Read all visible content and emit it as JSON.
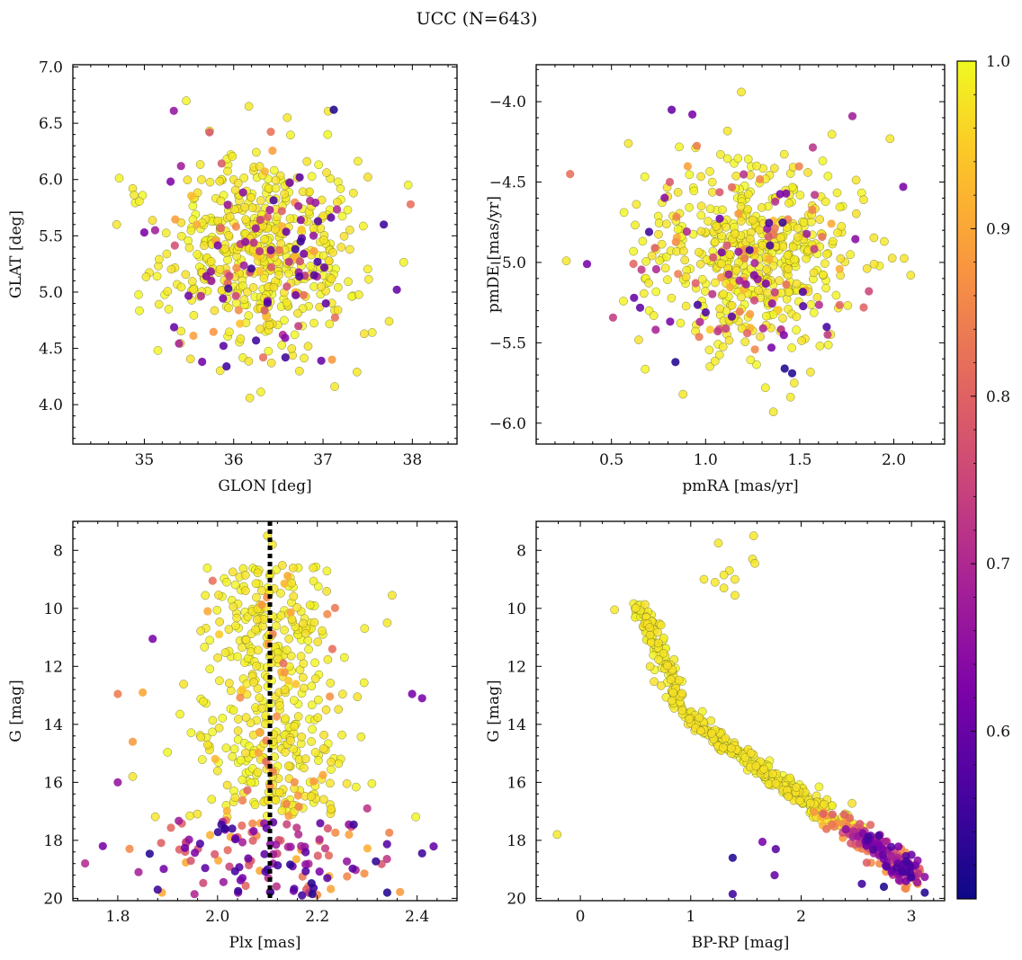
{
  "title": "UCC (N=643)",
  "colors": {
    "ref_line": "#000000",
    "point_edge": "#6b6b2a",
    "frame": "#000000"
  },
  "colorbar": {
    "colormap": "plasma",
    "range": [
      0.5,
      1.0
    ],
    "ticks": [
      0.6,
      0.7,
      0.8,
      0.9,
      1.0
    ],
    "tick_labels": [
      "0.6",
      "0.7",
      "0.8",
      "0.9",
      "1.0"
    ]
  },
  "chart_data": [
    {
      "id": "glon-glat",
      "type": "scatter",
      "xlabel": "GLON [deg]",
      "ylabel": "GLAT [deg]",
      "xlim": [
        34.2,
        38.5
      ],
      "ylim": [
        3.65,
        7.02
      ],
      "y_inverted": false,
      "xticks": [
        35,
        36,
        37,
        38
      ],
      "xtick_labels": [
        "35",
        "36",
        "37",
        "38"
      ],
      "yticks": [
        4.0,
        4.5,
        5.0,
        5.5,
        6.0,
        6.5,
        7.0
      ],
      "ytick_labels": [
        "4.0",
        "4.5",
        "5.0",
        "5.5",
        "6.0",
        "6.5",
        "7.0"
      ],
      "distribution": {
        "n": 643,
        "center": [
          36.3,
          5.35
        ],
        "spread": [
          0.55,
          0.45
        ]
      },
      "highlighted_points": [
        {
          "x": 36.17,
          "y": 6.65,
          "p": 0.98
        },
        {
          "x": 35.33,
          "y": 6.61,
          "p": 0.66
        },
        {
          "x": 37.12,
          "y": 6.62,
          "p": 0.52
        },
        {
          "x": 35.73,
          "y": 6.42,
          "p": 0.78
        },
        {
          "x": 37.98,
          "y": 5.78,
          "p": 0.82
        },
        {
          "x": 37.68,
          "y": 5.6,
          "p": 0.55
        },
        {
          "x": 34.69,
          "y": 5.6,
          "p": 0.98
        },
        {
          "x": 34.87,
          "y": 5.92,
          "p": 0.98
        },
        {
          "x": 35.12,
          "y": 5.55,
          "p": 0.68
        },
        {
          "x": 35.0,
          "y": 5.53,
          "p": 0.62
        },
        {
          "x": 36.33,
          "y": 4.42,
          "p": 0.82
        },
        {
          "x": 36.58,
          "y": 4.42,
          "p": 0.55
        },
        {
          "x": 35.92,
          "y": 4.34,
          "p": 0.55
        },
        {
          "x": 36.98,
          "y": 4.39,
          "p": 0.6
        },
        {
          "x": 37.38,
          "y": 4.29,
          "p": 0.98
        },
        {
          "x": 36.18,
          "y": 4.06,
          "p": 0.98
        },
        {
          "x": 37.13,
          "y": 4.16,
          "p": 0.98
        },
        {
          "x": 37.74,
          "y": 4.74,
          "p": 0.98
        },
        {
          "x": 36.25,
          "y": 4.57,
          "p": 0.55
        },
        {
          "x": 36.55,
          "y": 4.62,
          "p": 0.7
        },
        {
          "x": 36.9,
          "y": 5.15,
          "p": 0.58
        },
        {
          "x": 36.75,
          "y": 5.45,
          "p": 0.55
        },
        {
          "x": 37.1,
          "y": 4.4,
          "p": 0.88
        },
        {
          "x": 36.6,
          "y": 6.55,
          "p": 0.98
        },
        {
          "x": 35.41,
          "y": 6.12,
          "p": 0.68
        },
        {
          "x": 37.34,
          "y": 5.88,
          "p": 0.98
        }
      ]
    },
    {
      "id": "pmra-pmde",
      "type": "scatter",
      "xlabel": "pmRA [mas/yr]",
      "ylabel": "pmDE [mas/yr]",
      "xlim": [
        0.1,
        2.27
      ],
      "ylim": [
        -6.13,
        -3.77
      ],
      "y_inverted": false,
      "xticks": [
        0.5,
        1.0,
        1.5,
        2.0
      ],
      "xtick_labels": [
        "0.5",
        "1.0",
        "1.5",
        "2.0"
      ],
      "yticks": [
        -6.0,
        -5.5,
        -5.0,
        -4.5,
        -4.0
      ],
      "ytick_labels": [
        "−6.0",
        "−5.5",
        "−5.0",
        "−4.5",
        "−4.0"
      ],
      "distribution": {
        "n": 643,
        "center": [
          1.25,
          -4.95
        ],
        "spread": [
          0.28,
          0.3
        ]
      },
      "highlighted_points": [
        {
          "x": 1.19,
          "y": -3.94,
          "p": 0.98
        },
        {
          "x": 0.82,
          "y": -4.05,
          "p": 0.6
        },
        {
          "x": 0.93,
          "y": -4.08,
          "p": 0.62
        },
        {
          "x": 1.78,
          "y": -4.09,
          "p": 0.68
        },
        {
          "x": 0.28,
          "y": -4.45,
          "p": 0.82
        },
        {
          "x": 0.37,
          "y": -5.01,
          "p": 0.62
        },
        {
          "x": 0.26,
          "y": -4.99,
          "p": 0.98
        },
        {
          "x": 0.84,
          "y": -5.62,
          "p": 0.52
        },
        {
          "x": 0.88,
          "y": -5.82,
          "p": 0.98
        },
        {
          "x": 1.36,
          "y": -5.93,
          "p": 0.98
        },
        {
          "x": 1.42,
          "y": -5.66,
          "p": 0.52
        },
        {
          "x": 1.46,
          "y": -5.69,
          "p": 0.52
        },
        {
          "x": 2.05,
          "y": -4.53,
          "p": 0.62
        },
        {
          "x": 2.09,
          "y": -5.08,
          "p": 0.98
        },
        {
          "x": 1.84,
          "y": -5.28,
          "p": 0.8
        },
        {
          "x": 0.62,
          "y": -5.22,
          "p": 0.6
        },
        {
          "x": 0.7,
          "y": -4.81,
          "p": 0.55
        },
        {
          "x": 0.59,
          "y": -4.26,
          "p": 0.98
        },
        {
          "x": 1.98,
          "y": -4.23,
          "p": 0.98
        },
        {
          "x": 1.84,
          "y": -4.61,
          "p": 0.98
        },
        {
          "x": 1.35,
          "y": -5.53,
          "p": 0.62
        },
        {
          "x": 0.97,
          "y": -5.37,
          "p": 0.7
        },
        {
          "x": 0.81,
          "y": -4.5,
          "p": 0.78
        },
        {
          "x": 1.58,
          "y": -4.58,
          "p": 0.72
        }
      ]
    },
    {
      "id": "plx-g",
      "type": "scatter",
      "xlabel": "Plx [mas]",
      "ylabel": "G [mag]",
      "xlim": [
        1.71,
        2.48
      ],
      "ylim": [
        20.08,
        7.0
      ],
      "y_inverted": true,
      "xticks": [
        1.8,
        2.0,
        2.2,
        2.4
      ],
      "xtick_labels": [
        "1.8",
        "2.0",
        "2.2",
        "2.4"
      ],
      "yticks": [
        8,
        10,
        12,
        14,
        16,
        18,
        20
      ],
      "ytick_labels": [
        "8",
        "10",
        "12",
        "14",
        "16",
        "18",
        "20"
      ],
      "reference_line": {
        "x": 2.105,
        "style": "dotted"
      },
      "distribution": {
        "n": 643,
        "center_x": 2.11,
        "spread_x": 0.09,
        "g_range": [
          7.5,
          20.0
        ]
      },
      "highlighted_points": [
        {
          "x": 2.1,
          "y": 7.5,
          "p": 0.98
        },
        {
          "x": 2.11,
          "y": 7.8,
          "p": 0.98
        },
        {
          "x": 1.77,
          "y": 18.2,
          "p": 0.62
        },
        {
          "x": 1.8,
          "y": 16.0,
          "p": 0.66
        },
        {
          "x": 1.8,
          "y": 12.95,
          "p": 0.84
        },
        {
          "x": 1.83,
          "y": 15.8,
          "p": 0.98
        },
        {
          "x": 1.87,
          "y": 11.05,
          "p": 0.62
        },
        {
          "x": 1.83,
          "y": 14.6,
          "p": 0.88
        },
        {
          "x": 2.41,
          "y": 13.1,
          "p": 0.62
        },
        {
          "x": 2.39,
          "y": 12.95,
          "p": 0.62
        },
        {
          "x": 2.35,
          "y": 9.55,
          "p": 0.98
        },
        {
          "x": 2.34,
          "y": 10.5,
          "p": 0.98
        },
        {
          "x": 2.41,
          "y": 18.45,
          "p": 0.55
        },
        {
          "x": 2.34,
          "y": 19.8,
          "p": 0.52
        },
        {
          "x": 2.19,
          "y": 19.85,
          "p": 0.52
        },
        {
          "x": 1.88,
          "y": 19.7,
          "p": 0.55
        },
        {
          "x": 1.99,
          "y": 9.05,
          "p": 0.82
        },
        {
          "x": 2.22,
          "y": 10.2,
          "p": 0.86
        },
        {
          "x": 2.23,
          "y": 11.4,
          "p": 0.82
        },
        {
          "x": 2.3,
          "y": 16.9,
          "p": 0.72
        },
        {
          "x": 1.85,
          "y": 12.9,
          "p": 0.9
        },
        {
          "x": 2.22,
          "y": 19.3,
          "p": 0.58
        },
        {
          "x": 2.1,
          "y": 19.0,
          "p": 0.55
        },
        {
          "x": 2.05,
          "y": 19.3,
          "p": 0.62
        }
      ]
    },
    {
      "id": "bprp-g",
      "type": "scatter",
      "xlabel": "BP-RP [mag]",
      "ylabel": "G [mag]",
      "xlim": [
        -0.4,
        3.3
      ],
      "ylim": [
        20.08,
        7.0
      ],
      "y_inverted": true,
      "xticks": [
        0,
        1,
        2,
        3
      ],
      "xtick_labels": [
        "0",
        "1",
        "2",
        "3"
      ],
      "yticks": [
        8,
        10,
        12,
        14,
        16,
        18,
        20
      ],
      "ytick_labels": [
        "8",
        "10",
        "12",
        "14",
        "16",
        "18",
        "20"
      ],
      "sequence_path": [
        [
          0.45,
          9.7
        ],
        [
          0.6,
          10.5
        ],
        [
          0.75,
          11.8
        ],
        [
          0.9,
          13.2
        ],
        [
          1.1,
          14.1
        ],
        [
          1.4,
          14.9
        ],
        [
          1.7,
          15.7
        ],
        [
          2.0,
          16.5
        ],
        [
          2.3,
          17.2
        ],
        [
          2.6,
          18.0
        ],
        [
          2.85,
          18.7
        ],
        [
          3.05,
          19.3
        ]
      ],
      "highlighted_points": [
        {
          "x": -0.21,
          "y": 17.8,
          "p": 0.98
        },
        {
          "x": 0.31,
          "y": 10.05,
          "p": 0.98
        },
        {
          "x": 1.25,
          "y": 7.75,
          "p": 0.98
        },
        {
          "x": 1.57,
          "y": 7.5,
          "p": 0.98
        },
        {
          "x": 1.56,
          "y": 8.3,
          "p": 0.98
        },
        {
          "x": 1.58,
          "y": 8.45,
          "p": 0.98
        },
        {
          "x": 1.35,
          "y": 8.7,
          "p": 0.98
        },
        {
          "x": 1.3,
          "y": 8.85,
          "p": 0.98
        },
        {
          "x": 1.4,
          "y": 9.0,
          "p": 0.98
        },
        {
          "x": 1.12,
          "y": 9.0,
          "p": 0.98
        },
        {
          "x": 1.22,
          "y": 9.1,
          "p": 0.98
        },
        {
          "x": 1.3,
          "y": 9.3,
          "p": 0.98
        },
        {
          "x": 1.4,
          "y": 9.55,
          "p": 0.98
        },
        {
          "x": 1.38,
          "y": 18.6,
          "p": 0.52
        },
        {
          "x": 1.38,
          "y": 19.85,
          "p": 0.55
        },
        {
          "x": 1.65,
          "y": 18.05,
          "p": 0.62
        },
        {
          "x": 1.77,
          "y": 18.3,
          "p": 0.58
        },
        {
          "x": 1.76,
          "y": 19.2,
          "p": 0.6
        },
        {
          "x": 3.12,
          "y": 19.8,
          "p": 0.52
        },
        {
          "x": 2.95,
          "y": 19.4,
          "p": 0.62
        },
        {
          "x": 3.0,
          "y": 18.5,
          "p": 0.6
        },
        {
          "x": 2.55,
          "y": 19.5,
          "p": 0.55
        },
        {
          "x": 2.45,
          "y": 18.1,
          "p": 0.78
        },
        {
          "x": 2.75,
          "y": 19.6,
          "p": 0.52
        }
      ]
    }
  ]
}
